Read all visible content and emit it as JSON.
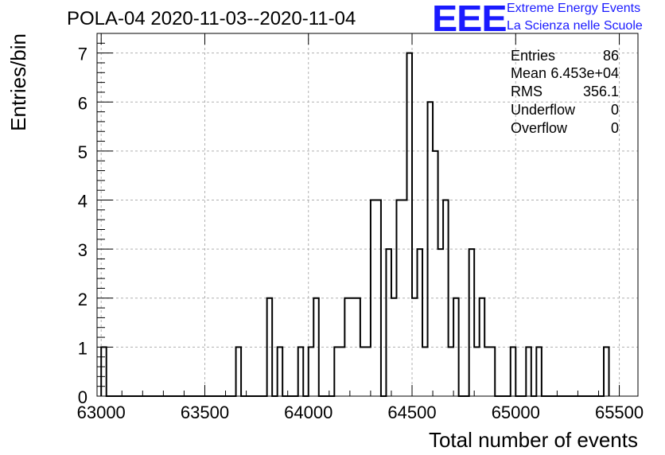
{
  "chart_data": {
    "type": "histogram",
    "title": "POLA-04 2020-11-03--2020-11-04",
    "xlabel": "Total number of events",
    "ylabel": "Entries/bin",
    "xlim": [
      62980,
      65590
    ],
    "ylim": [
      0,
      7.4
    ],
    "bin_width": 25,
    "x_ticks": [
      63000,
      63500,
      64000,
      64500,
      65000,
      65500
    ],
    "y_ticks": [
      0,
      1,
      2,
      3,
      4,
      5,
      6,
      7
    ],
    "grid": true,
    "bins": [
      {
        "x": 63000,
        "count": 1
      },
      {
        "x": 63650,
        "count": 1
      },
      {
        "x": 63800,
        "count": 2
      },
      {
        "x": 63850,
        "count": 1
      },
      {
        "x": 63950,
        "count": 1
      },
      {
        "x": 64000,
        "count": 1
      },
      {
        "x": 64025,
        "count": 2
      },
      {
        "x": 64125,
        "count": 1
      },
      {
        "x": 64150,
        "count": 1
      },
      {
        "x": 64175,
        "count": 2
      },
      {
        "x": 64200,
        "count": 2
      },
      {
        "x": 64225,
        "count": 2
      },
      {
        "x": 64250,
        "count": 1
      },
      {
        "x": 64275,
        "count": 1
      },
      {
        "x": 64300,
        "count": 4
      },
      {
        "x": 64325,
        "count": 4
      },
      {
        "x": 64350,
        "count": 0
      },
      {
        "x": 64375,
        "count": 3
      },
      {
        "x": 64400,
        "count": 2
      },
      {
        "x": 64425,
        "count": 4
      },
      {
        "x": 64450,
        "count": 4
      },
      {
        "x": 64475,
        "count": 7
      },
      {
        "x": 64500,
        "count": 2
      },
      {
        "x": 64525,
        "count": 3
      },
      {
        "x": 64550,
        "count": 1
      },
      {
        "x": 64575,
        "count": 6
      },
      {
        "x": 64600,
        "count": 5
      },
      {
        "x": 64625,
        "count": 3
      },
      {
        "x": 64650,
        "count": 4
      },
      {
        "x": 64675,
        "count": 1
      },
      {
        "x": 64700,
        "count": 2
      },
      {
        "x": 64775,
        "count": 3
      },
      {
        "x": 64800,
        "count": 1
      },
      {
        "x": 64825,
        "count": 2
      },
      {
        "x": 64850,
        "count": 1
      },
      {
        "x": 64875,
        "count": 1
      },
      {
        "x": 64975,
        "count": 1
      },
      {
        "x": 65050,
        "count": 1
      },
      {
        "x": 65100,
        "count": 1
      },
      {
        "x": 65425,
        "count": 1
      }
    ],
    "stats": [
      {
        "key": "Entries",
        "value": "86"
      },
      {
        "key": "Mean",
        "value": "6.453e+04"
      },
      {
        "key": "RMS",
        "value": "356.1"
      },
      {
        "key": "Underflow",
        "value": "0"
      },
      {
        "key": "Overflow",
        "value": "0"
      }
    ]
  },
  "logo": {
    "mark": "EEE",
    "line1": "Extreme Energy Events",
    "line2": "La Scienza nelle Scuole"
  },
  "colors": {
    "logo": "#1a1aff",
    "grid": "#b0b0b0",
    "line": "#000000"
  }
}
